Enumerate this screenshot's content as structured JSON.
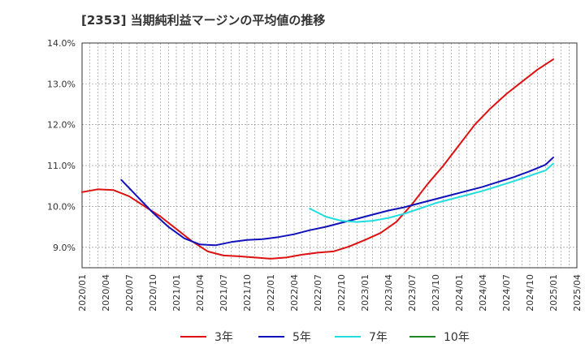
{
  "chart_data": {
    "type": "line",
    "title": "[2353]  当期純利益マージンの平均値の推移",
    "ylim": [
      8.5,
      14.0
    ],
    "y_ticks": [
      9.0,
      10.0,
      11.0,
      12.0,
      13.0,
      14.0
    ],
    "y_tick_labels": [
      "9.0%",
      "10.0%",
      "11.0%",
      "12.0%",
      "13.0%",
      "14.0%"
    ],
    "x_tick_labels": [
      "2020/01",
      "2020/04",
      "2020/07",
      "2020/10",
      "2021/01",
      "2021/04",
      "2021/07",
      "2021/10",
      "2022/01",
      "2022/04",
      "2022/07",
      "2022/10",
      "2023/01",
      "2023/04",
      "2023/07",
      "2023/10",
      "2024/01",
      "2024/04",
      "2024/07",
      "2024/10",
      "2025/01",
      "2025/04"
    ],
    "grid": true,
    "legend_placement": "bottom",
    "series": [
      {
        "name": "3年",
        "color": "#dd1111",
        "x": [
          "2020/01",
          "2020/03",
          "2020/05",
          "2020/07",
          "2020/09",
          "2020/11",
          "2021/01",
          "2021/03",
          "2021/05",
          "2021/07",
          "2021/09",
          "2021/11",
          "2022/01",
          "2022/03",
          "2022/05",
          "2022/07",
          "2022/09",
          "2022/11",
          "2023/01",
          "2023/03",
          "2023/05",
          "2023/07",
          "2023/09",
          "2023/11",
          "2024/01",
          "2024/03",
          "2024/05",
          "2024/07",
          "2024/09",
          "2024/11",
          "2025/01"
        ],
        "values": [
          10.35,
          10.42,
          10.4,
          10.25,
          10.0,
          9.75,
          9.45,
          9.15,
          8.9,
          8.8,
          8.78,
          8.75,
          8.72,
          8.75,
          8.82,
          8.87,
          8.9,
          9.02,
          9.18,
          9.35,
          9.62,
          10.05,
          10.55,
          11.0,
          11.5,
          12.0,
          12.4,
          12.75,
          13.05,
          13.35,
          13.6
        ]
      },
      {
        "name": "5年",
        "color": "#1111bb",
        "x": [
          "2020/06",
          "2020/08",
          "2020/10",
          "2020/12",
          "2021/02",
          "2021/04",
          "2021/06",
          "2021/08",
          "2021/10",
          "2021/12",
          "2022/02",
          "2022/04",
          "2022/06",
          "2022/08",
          "2022/10",
          "2022/12",
          "2023/02",
          "2023/04",
          "2023/06",
          "2023/08",
          "2023/10",
          "2023/12",
          "2024/02",
          "2024/04",
          "2024/06",
          "2024/08",
          "2024/10",
          "2024/12",
          "2025/01"
        ],
        "values": [
          10.65,
          10.25,
          9.85,
          9.5,
          9.22,
          9.07,
          9.05,
          9.13,
          9.18,
          9.2,
          9.25,
          9.32,
          9.42,
          9.5,
          9.6,
          9.7,
          9.8,
          9.9,
          9.98,
          10.08,
          10.18,
          10.28,
          10.38,
          10.48,
          10.6,
          10.72,
          10.86,
          11.02,
          11.2
        ]
      },
      {
        "name": "7年",
        "color": "#22dddd",
        "x": [
          "2022/06",
          "2022/08",
          "2022/10",
          "2022/12",
          "2023/02",
          "2023/04",
          "2023/06",
          "2023/08",
          "2023/10",
          "2023/12",
          "2024/02",
          "2024/04",
          "2024/06",
          "2024/08",
          "2024/10",
          "2024/12",
          "2025/01"
        ],
        "values": [
          9.95,
          9.75,
          9.65,
          9.62,
          9.65,
          9.72,
          9.82,
          9.95,
          10.08,
          10.18,
          10.28,
          10.38,
          10.5,
          10.62,
          10.75,
          10.88,
          11.05
        ]
      },
      {
        "name": "10年",
        "color": "#228822",
        "x": [],
        "values": []
      }
    ]
  }
}
